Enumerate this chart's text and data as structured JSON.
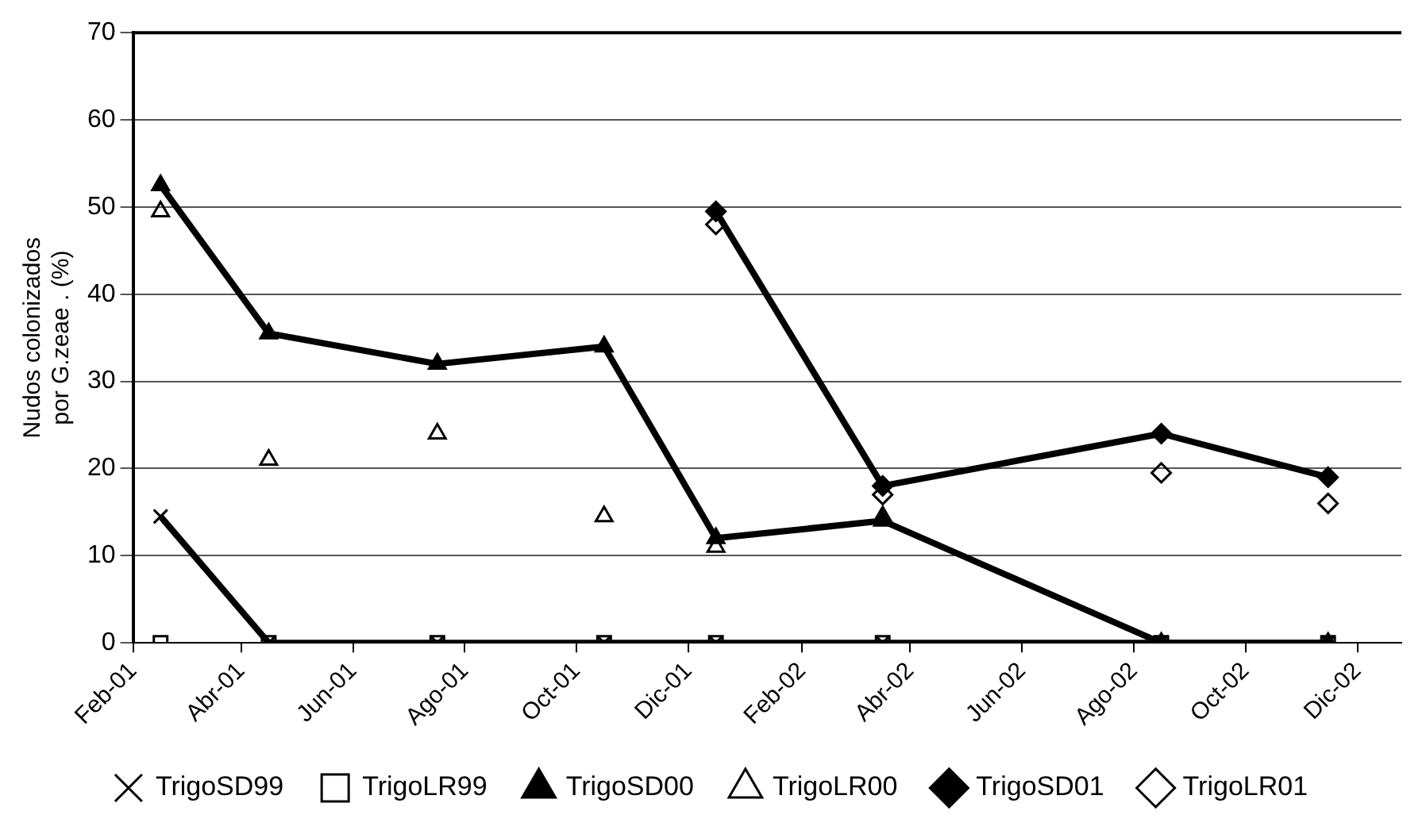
{
  "chart_data": {
    "type": "line",
    "ylabel": "Nudos colonizados\npor G.zeae . (%)",
    "x": [
      "2001-02-16",
      "2001-04-16",
      "2001-07-17",
      "2001-10-16",
      "2001-12-16",
      "2002-03-17",
      "2002-08-16",
      "2002-11-15"
    ],
    "xlim": [
      "2001-02-01",
      "2002-12-25"
    ],
    "xticks": [
      {
        "value": "2001-02-01",
        "label": "Feb-01"
      },
      {
        "value": "2001-04-01",
        "label": "Abr-01"
      },
      {
        "value": "2001-06-01",
        "label": "Jun-01"
      },
      {
        "value": "2001-08-01",
        "label": "Ago-01"
      },
      {
        "value": "2001-10-01",
        "label": "Oct-01"
      },
      {
        "value": "2001-12-01",
        "label": "Dic-01"
      },
      {
        "value": "2002-02-01",
        "label": "Feb-02"
      },
      {
        "value": "2002-04-01",
        "label": "Abr-02"
      },
      {
        "value": "2002-06-01",
        "label": "Jun-02"
      },
      {
        "value": "2002-08-01",
        "label": "Ago-02"
      },
      {
        "value": "2002-10-01",
        "label": "Oct-02"
      },
      {
        "value": "2002-12-01",
        "label": "Dic-02"
      }
    ],
    "ylim": [
      0,
      70
    ],
    "yticks": [
      0,
      10,
      20,
      30,
      40,
      50,
      60,
      70
    ],
    "grid": "y",
    "legend": "bottom",
    "series": [
      {
        "name": "TrigoSD99",
        "color": "#000000",
        "marker": "cross",
        "values": [
          14.5,
          0,
          0,
          0,
          0,
          0,
          0,
          0
        ]
      },
      {
        "name": "TrigoLR99",
        "type": "scatter",
        "color": "#000000",
        "marker": "square",
        "values": [
          0,
          0,
          0,
          0,
          0,
          0,
          0,
          0
        ]
      },
      {
        "name": "TrigoSD00",
        "color": "#000000",
        "marker": "triangle",
        "values": [
          52.5,
          35.5,
          32,
          34,
          12,
          14,
          0,
          0
        ]
      },
      {
        "name": "TrigoLR00",
        "type": "scatter",
        "color": "#000000",
        "marker": "triangle",
        "values": [
          49.5,
          21,
          24,
          14.5,
          11,
          14.5,
          null,
          null
        ]
      },
      {
        "name": "TrigoSD01",
        "color": "#000000",
        "marker": "diamond",
        "x": [
          "2001-12-16",
          "2002-03-17",
          "2002-08-16",
          "2002-11-15"
        ],
        "values": [
          49.5,
          18,
          24,
          19
        ]
      },
      {
        "name": "TrigoLR01",
        "type": "scatter",
        "color": "#000000",
        "marker": "diamond",
        "x": [
          "2001-12-16",
          "2002-03-17",
          "2002-08-16",
          "2002-11-15"
        ],
        "values": [
          48,
          17,
          19.5,
          16
        ]
      }
    ]
  }
}
